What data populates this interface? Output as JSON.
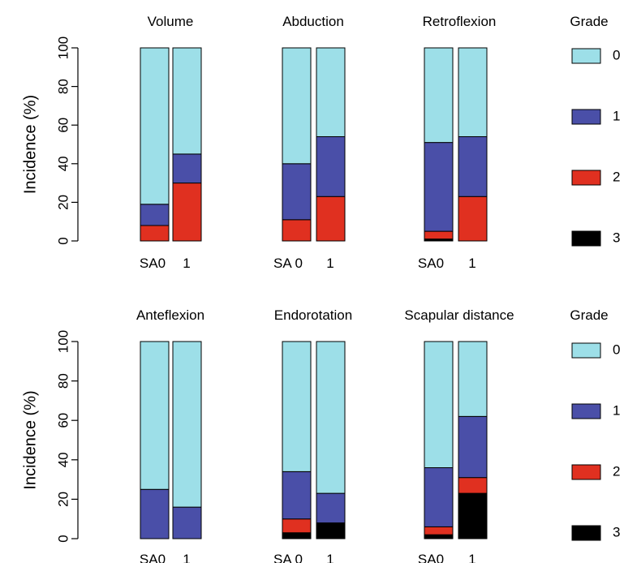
{
  "chart_data": {
    "type": "bar",
    "stacked": true,
    "ylabel": "Incidence (%)",
    "ylim": [
      0,
      100
    ],
    "yticks": [
      0,
      20,
      40,
      60,
      80,
      100
    ],
    "grid": false,
    "legend_title": "Grade",
    "grades": [
      "0",
      "1",
      "2",
      "3"
    ],
    "colors": {
      "0": "#9ddfe8",
      "1": "#4a4fa8",
      "2": "#e03020",
      "3": "#000000"
    },
    "panels": [
      {
        "title": "Volume",
        "categories": [
          "SA0",
          "1"
        ],
        "series": [
          {
            "name": "3",
            "values": [
              0,
              0
            ]
          },
          {
            "name": "2",
            "values": [
              8,
              30
            ]
          },
          {
            "name": "1",
            "values": [
              11,
              15
            ]
          },
          {
            "name": "0",
            "values": [
              81,
              55
            ]
          }
        ]
      },
      {
        "title": "Abduction",
        "categories": [
          "SA 0",
          "1"
        ],
        "series": [
          {
            "name": "3",
            "values": [
              0,
              0
            ]
          },
          {
            "name": "2",
            "values": [
              11,
              23
            ]
          },
          {
            "name": "1",
            "values": [
              29,
              31
            ]
          },
          {
            "name": "0",
            "values": [
              60,
              46
            ]
          }
        ]
      },
      {
        "title": "Retroflexion",
        "categories": [
          "SA0",
          "1"
        ],
        "series": [
          {
            "name": "3",
            "values": [
              1,
              0
            ]
          },
          {
            "name": "2",
            "values": [
              4,
              23
            ]
          },
          {
            "name": "1",
            "values": [
              46,
              31
            ]
          },
          {
            "name": "0",
            "values": [
              49,
              46
            ]
          }
        ]
      },
      {
        "title": "Anteflexion",
        "categories": [
          "SA0",
          "1"
        ],
        "series": [
          {
            "name": "3",
            "values": [
              0,
              0
            ]
          },
          {
            "name": "2",
            "values": [
              0,
              0
            ]
          },
          {
            "name": "1",
            "values": [
              25,
              16
            ]
          },
          {
            "name": "0",
            "values": [
              75,
              84
            ]
          }
        ]
      },
      {
        "title": "Endorotation",
        "categories": [
          "SA 0",
          "1"
        ],
        "series": [
          {
            "name": "3",
            "values": [
              3,
              8
            ]
          },
          {
            "name": "2",
            "values": [
              7,
              0
            ]
          },
          {
            "name": "1",
            "values": [
              24,
              15
            ]
          },
          {
            "name": "0",
            "values": [
              66,
              77
            ]
          }
        ]
      },
      {
        "title": "Scapular distance",
        "categories": [
          "SA0",
          "1"
        ],
        "series": [
          {
            "name": "3",
            "values": [
              2,
              23
            ]
          },
          {
            "name": "2",
            "values": [
              4,
              8
            ]
          },
          {
            "name": "1",
            "values": [
              30,
              31
            ]
          },
          {
            "name": "0",
            "values": [
              64,
              38
            ]
          }
        ]
      }
    ]
  }
}
